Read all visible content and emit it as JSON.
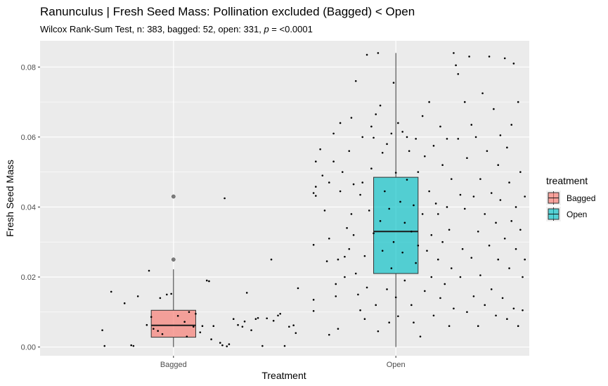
{
  "chart_data": {
    "type": "boxplot",
    "title": "Ranunculus | Fresh Seed Mass: Pollination excluded (Bagged) < Open",
    "subtitle_prefix": "Wilcox Rank-Sum Test, n: 383, bagged: 52, open: 331, ",
    "subtitle_p": "p",
    "subtitle_suffix": " = <0.0001",
    "xlabel": "Treatment",
    "ylabel": "Fresh Seed Mass",
    "categories": [
      "Bagged",
      "Open"
    ],
    "ylim": [
      -0.0025,
      0.0875
    ],
    "yticks": [
      0.0,
      0.02,
      0.04,
      0.06,
      0.08
    ],
    "ytick_labels": [
      "0.00",
      "0.02",
      "0.04",
      "0.06",
      "0.08"
    ],
    "grid": true,
    "legend": {
      "title": "treatment",
      "position": "right",
      "entries": [
        {
          "label": "Bagged",
          "color": "#F8766D"
        },
        {
          "label": "Open",
          "color": "#00BFC4"
        }
      ]
    },
    "series": [
      {
        "name": "Bagged",
        "color": "#F8766D",
        "box": {
          "q1": 0.0028,
          "median": 0.0062,
          "q3": 0.0105,
          "whisker_low": 0.0,
          "whisker_high": 0.0222
        },
        "outliers": [
          0.025,
          0.043
        ],
        "jitter": [
          [
            0.72,
            0.0158
          ],
          [
            0.68,
            0.0048
          ],
          [
            0.69,
            0.0003
          ],
          [
            0.78,
            0.0125
          ],
          [
            0.82,
            0.0003
          ],
          [
            0.81,
            0.0005
          ],
          [
            0.84,
            0.0145
          ],
          [
            0.89,
            0.0218
          ],
          [
            0.88,
            0.0063
          ],
          [
            0.9,
            0.0086
          ],
          [
            0.91,
            0.0052
          ],
          [
            0.93,
            0.0046
          ],
          [
            0.94,
            0.014
          ],
          [
            0.97,
            0.015
          ],
          [
            0.99,
            0.0152
          ],
          [
            1.02,
            0.0089
          ],
          [
            1.05,
            0.0072
          ],
          [
            1.06,
            0.003
          ],
          [
            1.07,
            0.01
          ],
          [
            1.09,
            0.0058
          ],
          [
            1.1,
            0.0095
          ],
          [
            0.95,
            0.0037
          ],
          [
            1.12,
            0.0042
          ],
          [
            1.15,
            0.019
          ],
          [
            1.16,
            0.0188
          ],
          [
            1.18,
            0.006
          ],
          [
            1.17,
            0.0022
          ],
          [
            1.21,
            0.0012
          ],
          [
            1.22,
            0.0005
          ],
          [
            1.24,
            0.0002
          ],
          [
            1.25,
            0.0008
          ],
          [
            1.27,
            0.008
          ],
          [
            1.29,
            0.0063
          ],
          [
            1.31,
            0.0058
          ],
          [
            1.32,
            0.0073
          ],
          [
            1.33,
            0.0155
          ],
          [
            1.35,
            0.0048
          ],
          [
            1.37,
            0.008
          ],
          [
            1.38,
            0.0083
          ],
          [
            1.4,
            0.0003
          ],
          [
            1.42,
            0.0082
          ],
          [
            1.44,
            0.025
          ],
          [
            1.45,
            0.0075
          ],
          [
            1.47,
            0.009
          ],
          [
            1.48,
            0.0095
          ],
          [
            1.5,
            0.0003
          ],
          [
            1.52,
            0.0058
          ],
          [
            1.54,
            0.0062
          ],
          [
            1.55,
            0.004
          ],
          [
            1.56,
            0.0168
          ],
          [
            1.23,
            0.0425
          ],
          [
            1.13,
            0.006
          ]
        ]
      },
      {
        "name": "Open",
        "color": "#00BFC4",
        "box": {
          "q1": 0.021,
          "median": 0.033,
          "q3": 0.0485,
          "whisker_low": 0.0,
          "whisker_high": 0.084
        },
        "outliers": [],
        "jitter": [
          [
            1.63,
            0.0135
          ],
          [
            1.63,
            0.0103
          ],
          [
            1.63,
            0.0292
          ],
          [
            1.63,
            0.044
          ],
          [
            1.64,
            0.053
          ],
          [
            1.64,
            0.0458
          ],
          [
            1.64,
            0.0432
          ],
          [
            1.66,
            0.0565
          ],
          [
            1.67,
            0.049
          ],
          [
            1.68,
            0.039
          ],
          [
            1.7,
            0.047
          ],
          [
            1.7,
            0.031
          ],
          [
            1.69,
            0.0245
          ],
          [
            1.7,
            0.0035
          ],
          [
            1.72,
            0.053
          ],
          [
            1.72,
            0.061
          ],
          [
            1.73,
            0.018
          ],
          [
            1.73,
            0.0145
          ],
          [
            1.74,
            0.0052
          ],
          [
            1.74,
            0.025
          ],
          [
            1.75,
            0.064
          ],
          [
            1.75,
            0.0445
          ],
          [
            1.76,
            0.05
          ],
          [
            1.77,
            0.0258
          ],
          [
            1.77,
            0.02
          ],
          [
            1.78,
            0.034
          ],
          [
            1.79,
            0.028
          ],
          [
            1.79,
            0.056
          ],
          [
            1.8,
            0.0655
          ],
          [
            1.8,
            0.038
          ],
          [
            1.81,
            0.0465
          ],
          [
            1.81,
            0.032
          ],
          [
            1.82,
            0.076
          ],
          [
            1.82,
            0.021
          ],
          [
            1.83,
            0.015
          ],
          [
            1.84,
            0.0105
          ],
          [
            1.84,
            0.0435
          ],
          [
            1.85,
            0.06
          ],
          [
            1.85,
            0.047
          ],
          [
            1.86,
            0.026
          ],
          [
            1.86,
            0.008
          ],
          [
            1.87,
            0.0835
          ],
          [
            1.87,
            0.017
          ],
          [
            1.88,
            0.039
          ],
          [
            1.89,
            0.063
          ],
          [
            1.89,
            0.051
          ],
          [
            1.9,
            0.0598
          ],
          [
            1.9,
            0.0325
          ],
          [
            1.91,
            0.012
          ],
          [
            1.91,
            0.0665
          ],
          [
            1.92,
            0.084
          ],
          [
            1.92,
            0.0045
          ],
          [
            1.93,
            0.069
          ],
          [
            1.93,
            0.036
          ],
          [
            1.94,
            0.0275
          ],
          [
            1.94,
            0.0555
          ],
          [
            1.95,
            0.0445
          ],
          [
            1.96,
            0.058
          ],
          [
            1.96,
            0.0165
          ],
          [
            1.97,
            0.007
          ],
          [
            1.97,
            0.0395
          ],
          [
            1.98,
            0.061
          ],
          [
            1.98,
            0.0225
          ],
          [
            1.99,
            0.03
          ],
          [
            1.99,
            0.0755
          ],
          [
            2.0,
            0.0498
          ],
          [
            2.0,
            0.0142
          ],
          [
            2.01,
            0.064
          ],
          [
            2.01,
            0.0088
          ],
          [
            2.02,
            0.0415
          ],
          [
            2.03,
            0.027
          ],
          [
            2.03,
            0.0615
          ],
          [
            2.04,
            0.0355
          ],
          [
            2.04,
            0.019
          ],
          [
            2.05,
            0.06
          ],
          [
            2.05,
            0.0478
          ],
          [
            2.06,
            0.056
          ],
          [
            2.07,
            0.012
          ],
          [
            2.07,
            0.033
          ],
          [
            2.08,
            0.007
          ],
          [
            2.08,
            0.0405
          ],
          [
            2.09,
            0.0595
          ],
          [
            2.09,
            0.024
          ],
          [
            2.1,
            0.05
          ],
          [
            2.1,
            0.029
          ],
          [
            2.11,
            0.003
          ],
          [
            2.12,
            0.066
          ],
          [
            2.12,
            0.038
          ],
          [
            2.13,
            0.016
          ],
          [
            2.13,
            0.0545
          ],
          [
            2.14,
            0.0275
          ],
          [
            2.15,
            0.07
          ],
          [
            2.15,
            0.0445
          ],
          [
            2.16,
            0.02
          ],
          [
            2.16,
            0.032
          ],
          [
            2.17,
            0.009
          ],
          [
            2.17,
            0.0575
          ],
          [
            2.18,
            0.041
          ],
          [
            2.19,
            0.025
          ],
          [
            2.19,
            0.038
          ],
          [
            2.2,
            0.063
          ],
          [
            2.2,
            0.014
          ],
          [
            2.21,
            0.052
          ],
          [
            2.21,
            0.03
          ],
          [
            2.22,
            0.018
          ],
          [
            2.23,
            0.0595
          ],
          [
            2.23,
            0.04
          ],
          [
            2.24,
            0.006
          ],
          [
            2.24,
            0.0335
          ],
          [
            2.25,
            0.048
          ],
          [
            2.25,
            0.0225
          ],
          [
            2.26,
            0.084
          ],
          [
            2.26,
            0.011
          ],
          [
            2.27,
            0.0805
          ],
          [
            2.28,
            0.078
          ],
          [
            2.28,
            0.0595
          ],
          [
            2.29,
            0.0435
          ],
          [
            2.29,
            0.02
          ],
          [
            2.3,
            0.028
          ],
          [
            2.31,
            0.07
          ],
          [
            2.31,
            0.0395
          ],
          [
            2.32,
            0.01
          ],
          [
            2.32,
            0.054
          ],
          [
            2.33,
            0.083
          ],
          [
            2.34,
            0.0635
          ],
          [
            2.34,
            0.0255
          ],
          [
            2.35,
            0.043
          ],
          [
            2.35,
            0.0145
          ],
          [
            2.36,
            0.06
          ],
          [
            2.37,
            0.033
          ],
          [
            2.37,
            0.006
          ],
          [
            2.38,
            0.048
          ],
          [
            2.38,
            0.0205
          ],
          [
            2.39,
            0.0725
          ],
          [
            2.4,
            0.038
          ],
          [
            2.4,
            0.012
          ],
          [
            2.41,
            0.056
          ],
          [
            2.42,
            0.029
          ],
          [
            2.42,
            0.083
          ],
          [
            2.43,
            0.044
          ],
          [
            2.43,
            0.0165
          ],
          [
            2.44,
            0.068
          ],
          [
            2.45,
            0.0355
          ],
          [
            2.45,
            0.009
          ],
          [
            2.46,
            0.052
          ],
          [
            2.46,
            0.025
          ],
          [
            2.47,
            0.0605
          ],
          [
            2.47,
            0.042
          ],
          [
            2.48,
            0.014
          ],
          [
            2.49,
            0.0825
          ],
          [
            2.49,
            0.031
          ],
          [
            2.5,
            0.057
          ],
          [
            2.5,
            0.008
          ],
          [
            2.51,
            0.047
          ],
          [
            2.51,
            0.0225
          ],
          [
            2.52,
            0.0635
          ],
          [
            2.52,
            0.036
          ],
          [
            2.53,
            0.011
          ],
          [
            2.53,
            0.081
          ],
          [
            2.54,
            0.04
          ],
          [
            2.54,
            0.028
          ],
          [
            2.55,
            0.07
          ],
          [
            2.55,
            0.006
          ],
          [
            2.56,
            0.05
          ],
          [
            2.56,
            0.0335
          ],
          [
            2.57,
            0.0105
          ],
          [
            2.57,
            0.02
          ],
          [
            2.58,
            0.043
          ],
          [
            2.58,
            0.025
          ]
        ]
      }
    ]
  }
}
